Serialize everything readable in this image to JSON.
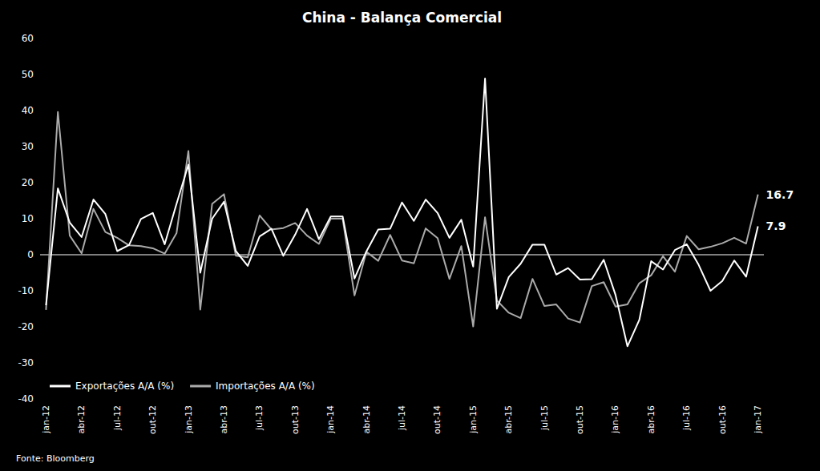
{
  "chart_data": {
    "type": "line",
    "title": "China - Balança Comercial",
    "source": "Fonte: Bloomberg",
    "categories": [
      "jan-12",
      null,
      null,
      "abr-12",
      null,
      null,
      "jul-12",
      null,
      null,
      "out-12",
      null,
      null,
      "jan-13",
      null,
      null,
      "abr-13",
      null,
      null,
      "jul-13",
      null,
      null,
      "out-13",
      null,
      null,
      "jan-14",
      null,
      null,
      "abr-14",
      null,
      null,
      "jul-14",
      null,
      null,
      "out-14",
      null,
      null,
      "jan-15",
      null,
      null,
      "abr-15",
      null,
      null,
      "jul-15",
      null,
      null,
      "out-15",
      null,
      null,
      "jan-16",
      null,
      null,
      "abr-16",
      null,
      null,
      "jul-16",
      null,
      null,
      "out-16",
      null,
      null,
      "jan-17"
    ],
    "series": [
      {
        "name": "Exportações A/A (%)",
        "color": "#ffffff",
        "values": [
          -14.0,
          18.4,
          8.9,
          4.9,
          15.3,
          11.3,
          1.0,
          2.7,
          9.9,
          11.6,
          2.9,
          14.1,
          25.0,
          -5.0,
          10.0,
          14.7,
          1.0,
          -3.1,
          5.1,
          7.2,
          -0.3,
          5.6,
          12.7,
          4.3,
          10.6,
          10.6,
          -6.6,
          0.9,
          7.0,
          7.2,
          14.5,
          9.4,
          15.3,
          11.6,
          4.7,
          9.7,
          -3.3,
          48.9,
          -15.0,
          -6.2,
          -2.5,
          2.8,
          2.8,
          -5.5,
          -3.7,
          -6.9,
          -6.8,
          -1.4,
          -11.2,
          -25.4,
          -18.1,
          -1.8,
          -4.1,
          1.3,
          2.9,
          -2.8,
          -10.0,
          -7.3,
          -1.6,
          -6.1,
          7.9
        ]
      },
      {
        "name": "Importações A/A (%)",
        "color": "#aaaaaa",
        "values": [
          -15.3,
          39.6,
          5.3,
          0.4,
          12.7,
          6.3,
          4.7,
          2.6,
          2.4,
          1.8,
          0.3,
          6.0,
          28.8,
          -15.2,
          14.1,
          16.8,
          -0.3,
          -0.7,
          10.9,
          7.0,
          7.4,
          8.8,
          5.3,
          3.0,
          10.0,
          10.0,
          -11.3,
          0.8,
          -1.7,
          5.5,
          -1.6,
          -2.4,
          7.3,
          4.6,
          -6.7,
          2.4,
          -19.9,
          10.4,
          -12.7,
          -16.1,
          -17.6,
          -6.7,
          -14.2,
          -13.8,
          -17.7,
          -18.8,
          -8.7,
          -7.6,
          -14.4,
          -13.8,
          -7.9,
          -5.7,
          -0.4,
          -4.7,
          5.2,
          1.5,
          2.2,
          3.2,
          4.7,
          3.1,
          16.7
        ]
      }
    ],
    "annotations": [
      {
        "text": "16.7",
        "x": "jan-17",
        "y": 16.7
      },
      {
        "text": "7.9",
        "x": "jan-17",
        "y": 7.9
      }
    ],
    "ylim": [
      -40,
      60
    ],
    "yticks": [
      -40,
      -30,
      -20,
      -10,
      0,
      10,
      20,
      30,
      40,
      50,
      60
    ],
    "grid": false,
    "legend": "lower left"
  }
}
